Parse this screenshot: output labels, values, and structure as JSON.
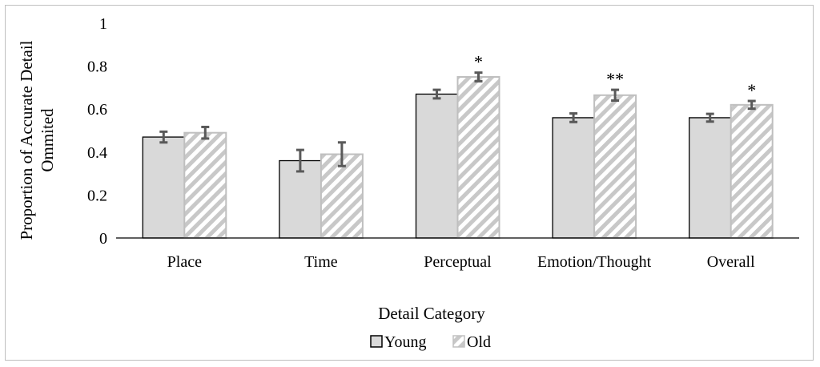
{
  "chart_data": {
    "type": "bar",
    "categories": [
      "Place",
      "Time",
      "Perceptual",
      "Emotion/Thought",
      "Overall"
    ],
    "series": [
      {
        "name": "Young",
        "values": [
          0.47,
          0.36,
          0.67,
          0.56,
          0.56
        ],
        "errors": [
          0.025,
          0.05,
          0.02,
          0.02,
          0.018
        ],
        "color": "#d9d9d9",
        "pattern": "solid"
      },
      {
        "name": "Old",
        "values": [
          0.49,
          0.39,
          0.75,
          0.665,
          0.62
        ],
        "errors": [
          0.027,
          0.055,
          0.02,
          0.025,
          0.018
        ],
        "color": "#c0c0c0",
        "pattern": "diagonal-hatch"
      }
    ],
    "annotations": [
      "",
      "",
      "*",
      "**",
      "*"
    ],
    "title": "",
    "xlabel": "Detail Category",
    "ylabel_lines": [
      "Proportion of Accurate Detail",
      "Ommited"
    ],
    "ylim": [
      0,
      1
    ],
    "yticks": [
      "0",
      "0.2",
      "0.4",
      "0.6",
      "0.8",
      "1"
    ],
    "grid": false,
    "legend_position": "bottom"
  }
}
